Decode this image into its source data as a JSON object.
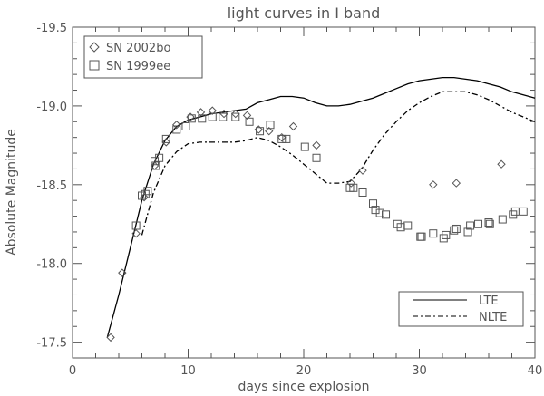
{
  "chart_data": {
    "type": "scatter",
    "title": "light curves in I band",
    "xlabel": "days since explosion",
    "ylabel": "Absolute Magnitude",
    "xlim": [
      0,
      40
    ],
    "ylim": [
      -17.4,
      -19.5
    ],
    "x_ticks": [
      0,
      10,
      20,
      30,
      40
    ],
    "y_ticks": [
      -17.5,
      -18.0,
      -18.5,
      -19.0,
      -19.5
    ],
    "x_tick_labels": [
      "0",
      "10",
      "20",
      "30",
      "40"
    ],
    "y_tick_labels": [
      "-17.5",
      "-18.0",
      "-18.5",
      "-19.0",
      "-19.5"
    ],
    "legend_points": {
      "placement": "top-left",
      "entries": [
        {
          "label": "SN 2002bo",
          "marker": "diamond"
        },
        {
          "label": "SN 1999ee",
          "marker": "square"
        }
      ]
    },
    "legend_lines": {
      "placement": "bottom-right",
      "entries": [
        {
          "label": "LTE",
          "style": "solid"
        },
        {
          "label": "NLTE",
          "style": "dash-dot"
        }
      ]
    },
    "series": [
      {
        "name": "SN 2002bo",
        "kind": "scatter",
        "marker": "diamond",
        "x": [
          3.3,
          4.3,
          5.5,
          6.2,
          7.1,
          8.1,
          9.0,
          10.2,
          11.1,
          12.1,
          13.1,
          14.1,
          15.1,
          16.1,
          17.0,
          18.1,
          19.1,
          21.1,
          24.1,
          25.1,
          31.2,
          33.2,
          37.1
        ],
        "y": [
          -17.53,
          -17.94,
          -18.19,
          -18.42,
          -18.62,
          -18.77,
          -18.88,
          -18.93,
          -18.96,
          -18.97,
          -18.95,
          -18.95,
          -18.94,
          -18.85,
          -18.84,
          -18.8,
          -18.87,
          -18.75,
          -18.51,
          -18.59,
          -18.5,
          -18.51,
          -18.63
        ]
      },
      {
        "name": "SN 1999ee",
        "kind": "scatter",
        "marker": "square",
        "x": [
          5.5,
          6.0,
          6.3,
          6.5,
          7.1,
          7.2,
          7.5,
          8.1,
          9.0,
          9.8,
          10.3,
          11.2,
          12.1,
          13.0,
          14.1,
          15.3,
          16.2,
          17.1,
          18.1,
          18.5,
          20.1,
          21.1,
          24.0,
          24.3,
          25.1,
          26.0,
          26.2,
          26.6,
          27.1,
          28.1,
          28.4,
          29.0,
          30.1,
          30.2,
          31.2,
          32.1,
          32.3,
          33.0,
          33.2,
          34.2,
          34.4,
          35.1,
          36.0,
          36.1,
          37.2,
          38.1,
          38.3,
          39.0
        ],
        "y": [
          -18.24,
          -18.43,
          -18.44,
          -18.46,
          -18.65,
          -18.62,
          -18.67,
          -18.79,
          -18.85,
          -18.87,
          -18.92,
          -18.92,
          -18.93,
          -18.93,
          -18.93,
          -18.9,
          -18.84,
          -18.88,
          -18.79,
          -18.79,
          -18.74,
          -18.67,
          -18.48,
          -18.48,
          -18.45,
          -18.38,
          -18.34,
          -18.32,
          -18.31,
          -18.25,
          -18.23,
          -18.24,
          -18.17,
          -18.17,
          -18.19,
          -18.16,
          -18.18,
          -18.21,
          -18.22,
          -18.2,
          -18.24,
          -18.25,
          -18.26,
          -18.25,
          -18.28,
          -18.31,
          -18.33,
          -18.33
        ]
      },
      {
        "name": "LTE",
        "kind": "line",
        "style": "solid",
        "x": [
          3.0,
          4.0,
          5.0,
          6.0,
          7.0,
          8.0,
          9.0,
          10.0,
          11.0,
          12.0,
          13.0,
          14.0,
          15.0,
          16.0,
          17.0,
          18.0,
          19.0,
          20.0,
          21.0,
          22.0,
          23.0,
          24.0,
          25.0,
          26.0,
          27.0,
          28.0,
          29.0,
          30.0,
          31.0,
          32.0,
          33.0,
          34.0,
          35.0,
          36.0,
          37.0,
          38.0,
          39.0,
          40.0
        ],
        "y": [
          -17.53,
          -17.8,
          -18.1,
          -18.4,
          -18.63,
          -18.78,
          -18.87,
          -18.91,
          -18.93,
          -18.95,
          -18.96,
          -18.97,
          -18.98,
          -19.02,
          -19.04,
          -19.06,
          -19.06,
          -19.05,
          -19.02,
          -19.0,
          -19.0,
          -19.01,
          -19.03,
          -19.05,
          -19.08,
          -19.11,
          -19.14,
          -19.16,
          -19.17,
          -19.18,
          -19.18,
          -19.17,
          -19.16,
          -19.14,
          -19.12,
          -19.09,
          -19.07,
          -19.05
        ]
      },
      {
        "name": "NLTE",
        "kind": "line",
        "style": "dash-dot",
        "x": [
          6.0,
          7.0,
          8.0,
          9.0,
          10.0,
          11.0,
          12.0,
          13.0,
          14.0,
          15.0,
          16.0,
          17.0,
          18.0,
          19.0,
          20.0,
          21.0,
          22.0,
          23.0,
          24.0,
          25.0,
          26.0,
          27.0,
          28.0,
          29.0,
          30.0,
          31.0,
          32.0,
          33.0,
          34.0,
          35.0,
          36.0,
          37.0,
          38.0,
          39.0,
          40.0
        ],
        "y": [
          -18.18,
          -18.45,
          -18.62,
          -18.71,
          -18.76,
          -18.77,
          -18.77,
          -18.77,
          -18.77,
          -18.78,
          -18.8,
          -18.78,
          -18.74,
          -18.69,
          -18.63,
          -18.57,
          -18.51,
          -18.51,
          -18.52,
          -18.6,
          -18.72,
          -18.82,
          -18.9,
          -18.97,
          -19.02,
          -19.06,
          -19.09,
          -19.09,
          -19.09,
          -19.07,
          -19.04,
          -19.0,
          -18.96,
          -18.93,
          -18.9
        ]
      }
    ]
  }
}
